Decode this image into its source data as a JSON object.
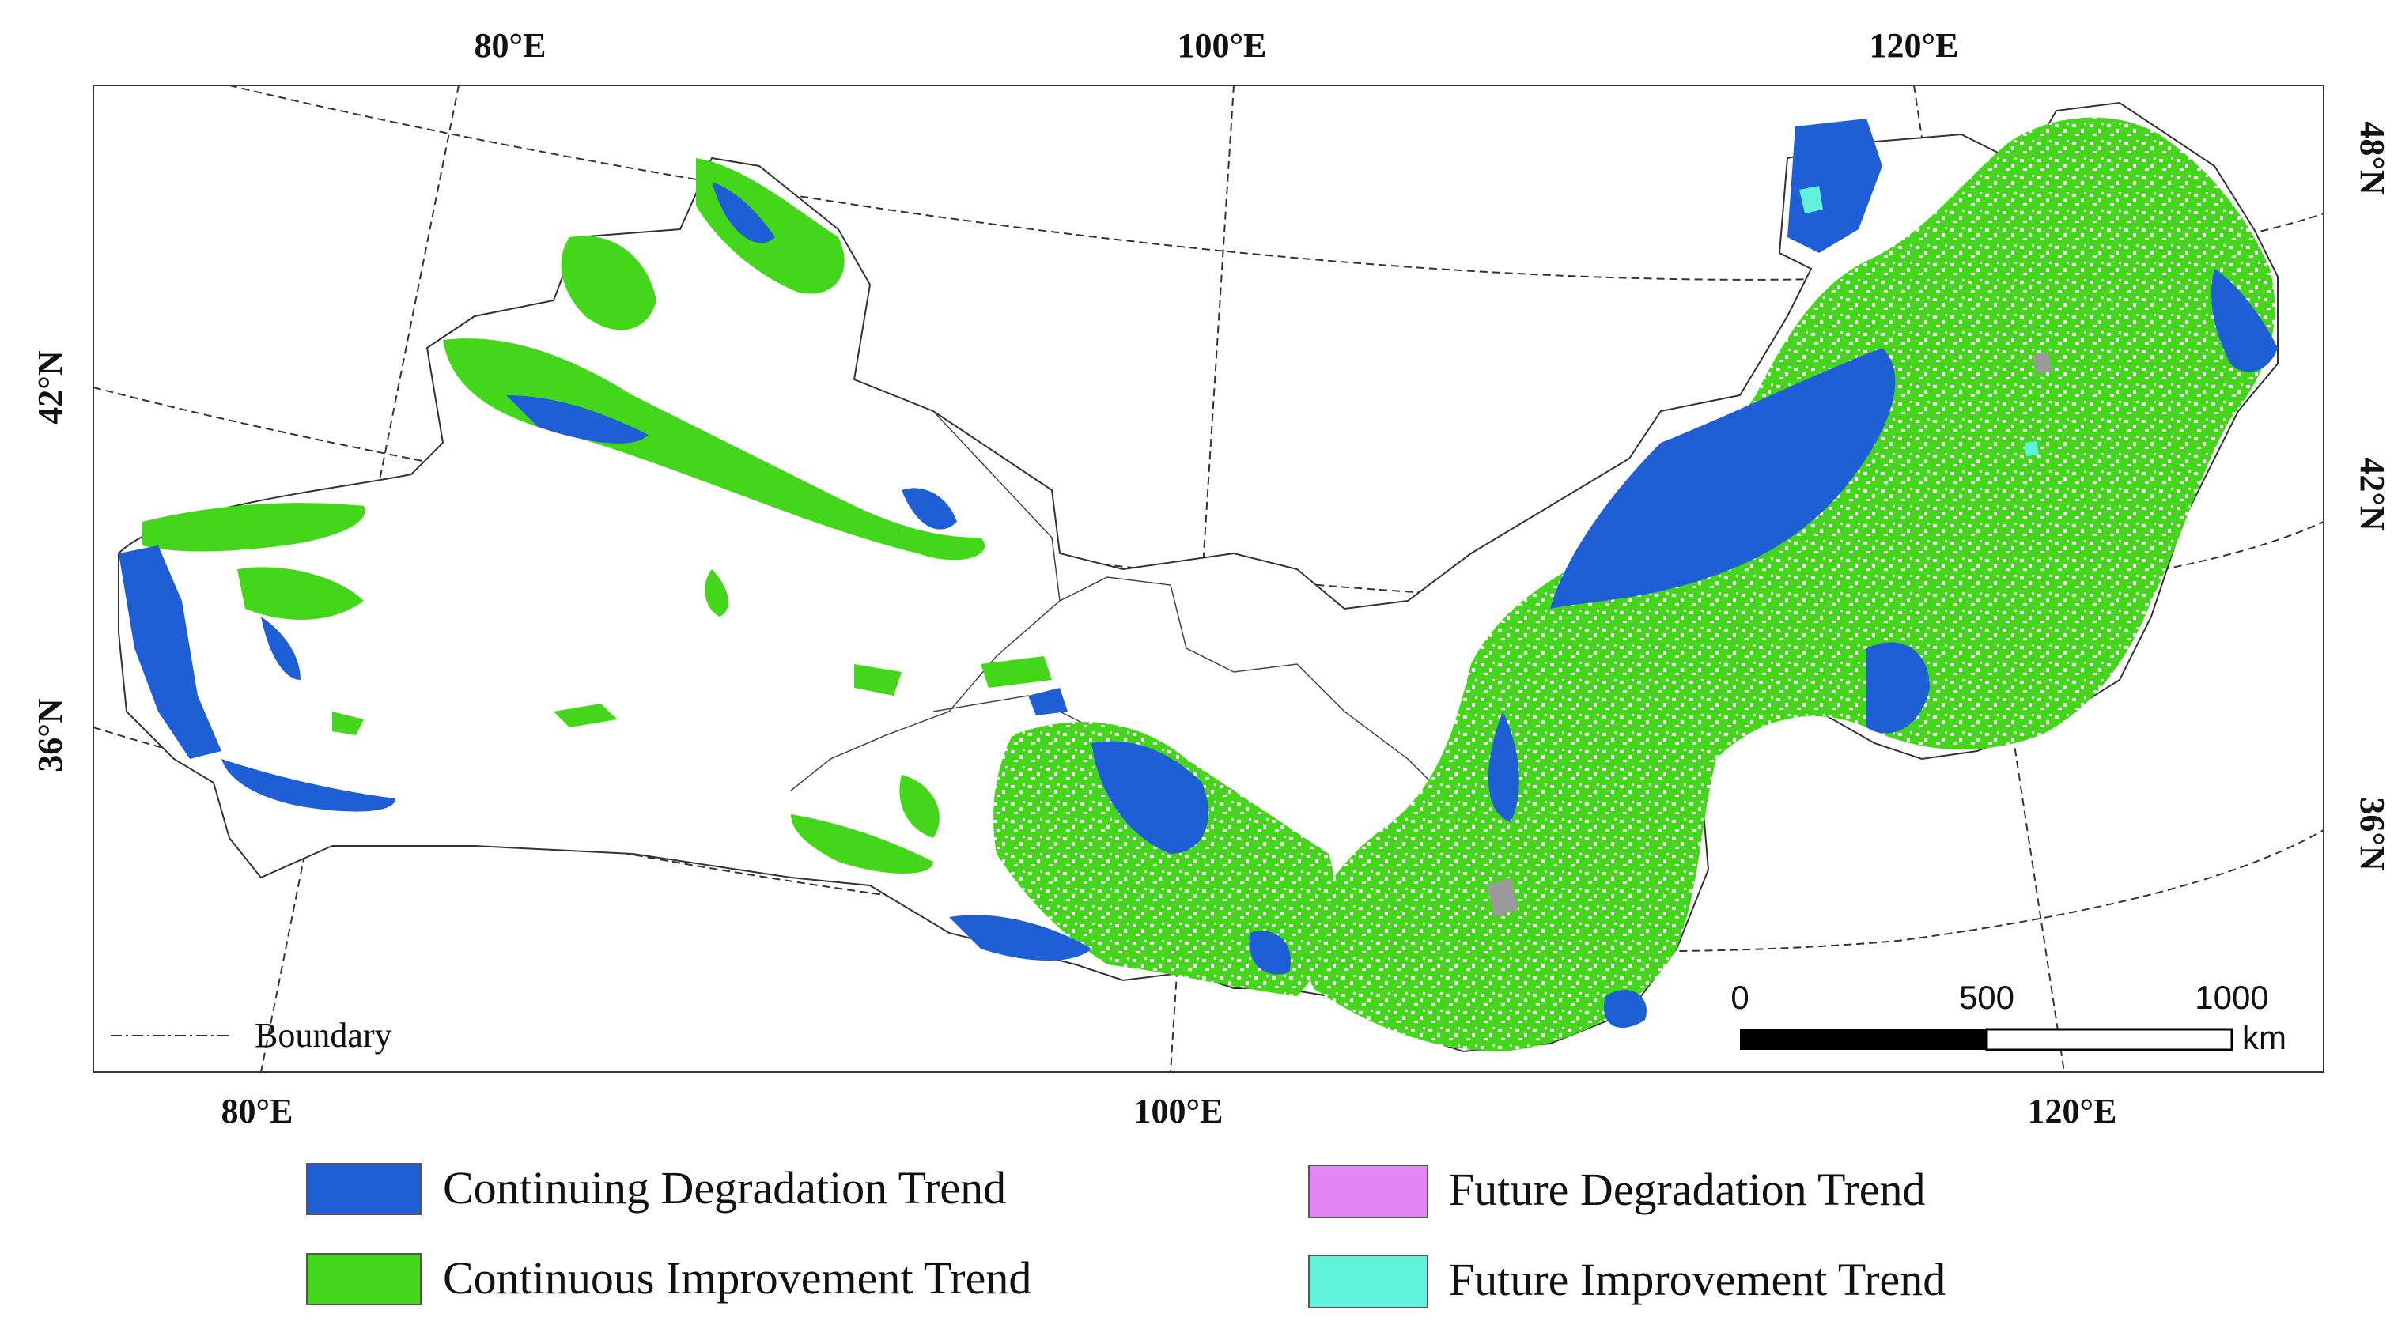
{
  "grid_labels": {
    "top": [
      "80°E",
      "100°E",
      "120°E"
    ],
    "bottom": [
      "80°E",
      "100°E",
      "120°E"
    ],
    "left": [
      "42°N",
      "36°N"
    ],
    "right": [
      "48°N",
      "42°N",
      "36°N"
    ]
  },
  "boundary_legend": {
    "label": "Boundary"
  },
  "scale_bar": {
    "ticks": [
      "0",
      "500",
      "1000"
    ],
    "unit": "km"
  },
  "legend": [
    {
      "label": "Continuing Degradation Trend",
      "color": "#1f5fd6"
    },
    {
      "label": "Continuous Improvement Trend",
      "color": "#44d61a"
    },
    {
      "label": "Future Degradation Trend",
      "color": "#e186f5"
    },
    {
      "label": "Future Improvement Trend",
      "color": "#5ff3dc"
    }
  ]
}
